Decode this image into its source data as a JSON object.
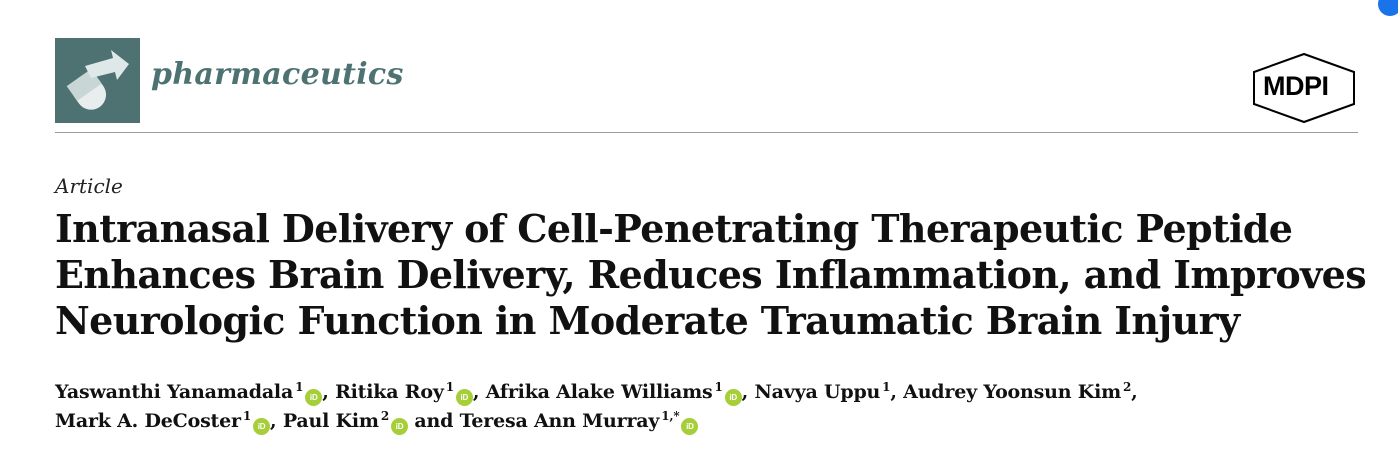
{
  "header": {
    "journal_name": "pharmaceutics",
    "publisher": "MDPI",
    "logo_icon": "pharmaceutics-logo-icon",
    "accent_color": "#4e7272"
  },
  "article": {
    "type": "Article",
    "title_lines": [
      "Intranasal Delivery of Cell-Penetrating Therapeutic Peptide",
      "Enhances Brain Delivery, Reduces Inflammation, and Improves",
      "Neurologic Function in Moderate Traumatic Brain Injury"
    ]
  },
  "authors": {
    "row1": [
      {
        "name": "Yaswanthi Yanamadala",
        "aff": "1",
        "orcid": true,
        "sep": ","
      },
      {
        "name": "Ritika Roy",
        "aff": "1",
        "orcid": true,
        "sep": ","
      },
      {
        "name": "Afrika Alake Williams",
        "aff": "1",
        "orcid": true,
        "sep": ","
      },
      {
        "name": "Navya Uppu",
        "aff": "1",
        "orcid": false,
        "sep": ","
      },
      {
        "name": "Audrey Yoonsun Kim",
        "aff": "2",
        "orcid": false,
        "sep": ","
      }
    ],
    "row2": [
      {
        "name": "Mark A. DeCoster",
        "aff": "1",
        "orcid": true,
        "sep": ","
      },
      {
        "name": "Paul Kim",
        "aff": "2",
        "orcid": true,
        "sep": ""
      },
      {
        "name": "and Teresa Ann Murray",
        "aff": "1,*",
        "orcid": true,
        "sep": ""
      }
    ],
    "orcid_icon": "orcid-icon",
    "orcid_label": "iD",
    "orcid_color": "#a6ce39"
  }
}
